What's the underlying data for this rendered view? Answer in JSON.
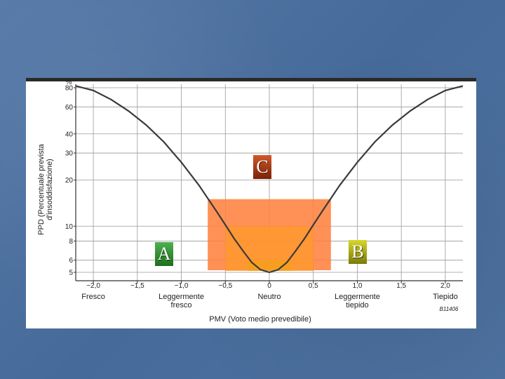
{
  "colors": {
    "background": "#4b6e9d",
    "chart_paper": "#ffffff",
    "curve": "#3a3a3a",
    "zone_outer": "#ff7e3a",
    "zone_inner": "#ff9a2a",
    "zone_core": "#f4a01a",
    "label_a": "#2e8b2e",
    "label_b": "#a9a712",
    "label_c": "#a3350f"
  },
  "zone_labels": {
    "a": "A",
    "b": "B",
    "c": "C"
  },
  "chart_data": {
    "type": "line",
    "title": "",
    "xlabel": "PMV (Voto medio prevedibile)",
    "ylabel": "PPD (Percentuale prevista d'insoddisfazione)",
    "yunit": "%",
    "xlim": [
      -2.2,
      2.2
    ],
    "ylim": [
      5,
      80
    ],
    "yscale": "log",
    "grid": true,
    "x_ticks": [
      "−2,0",
      "−1,5",
      "−1,0",
      "−0,5",
      "0",
      "0,5",
      "1,0",
      "1,5",
      "2,0"
    ],
    "x_tick_values": [
      -2.0,
      -1.5,
      -1.0,
      -0.5,
      0,
      0.5,
      1.0,
      1.5,
      2.0
    ],
    "y_ticks": [
      "80",
      "60",
      "40",
      "30",
      "20",
      "10",
      "8",
      "6",
      "5"
    ],
    "y_tick_values": [
      80,
      60,
      40,
      30,
      20,
      10,
      8,
      6,
      5
    ],
    "categories": [
      {
        "x": -2.0,
        "label": "Fresco"
      },
      {
        "x": -1.0,
        "label": "Leggermente\nfresco"
      },
      {
        "x": 0,
        "label": "Neutro"
      },
      {
        "x": 1.0,
        "label": "Leggermente\ntiepido"
      },
      {
        "x": 2.0,
        "label": "Tiepido"
      }
    ],
    "code": "B11406",
    "series": [
      {
        "x": [
          -2.2,
          -2.0,
          -1.8,
          -1.6,
          -1.4,
          -1.2,
          -1.0,
          -0.8,
          -0.6,
          -0.5,
          -0.4,
          -0.3,
          -0.2,
          -0.1,
          0,
          0.1,
          0.2,
          0.3,
          0.4,
          0.5,
          0.6,
          0.8,
          1.0,
          1.2,
          1.4,
          1.6,
          1.8,
          2.0,
          2.2
        ],
        "y": [
          82.2,
          76.8,
          67.1,
          56.4,
          45.7,
          35.5,
          26.1,
          18.5,
          12.5,
          10.2,
          8.3,
          6.9,
          5.8,
          5.2,
          5.0,
          5.2,
          5.8,
          6.9,
          8.3,
          10.2,
          12.5,
          18.5,
          26.1,
          35.5,
          45.7,
          56.4,
          67.1,
          76.8,
          82.2
        ]
      }
    ],
    "highlight_zones": [
      {
        "label": "C",
        "x_range": [
          -0.7,
          0.7
        ],
        "y_range": [
          5,
          15
        ]
      },
      {
        "label": "B",
        "x_range": [
          -0.5,
          0.5
        ],
        "y_range": [
          5,
          10
        ]
      },
      {
        "label": "A",
        "x_range": [
          -0.25,
          0.25
        ],
        "y_range": [
          5,
          6
        ]
      }
    ]
  }
}
